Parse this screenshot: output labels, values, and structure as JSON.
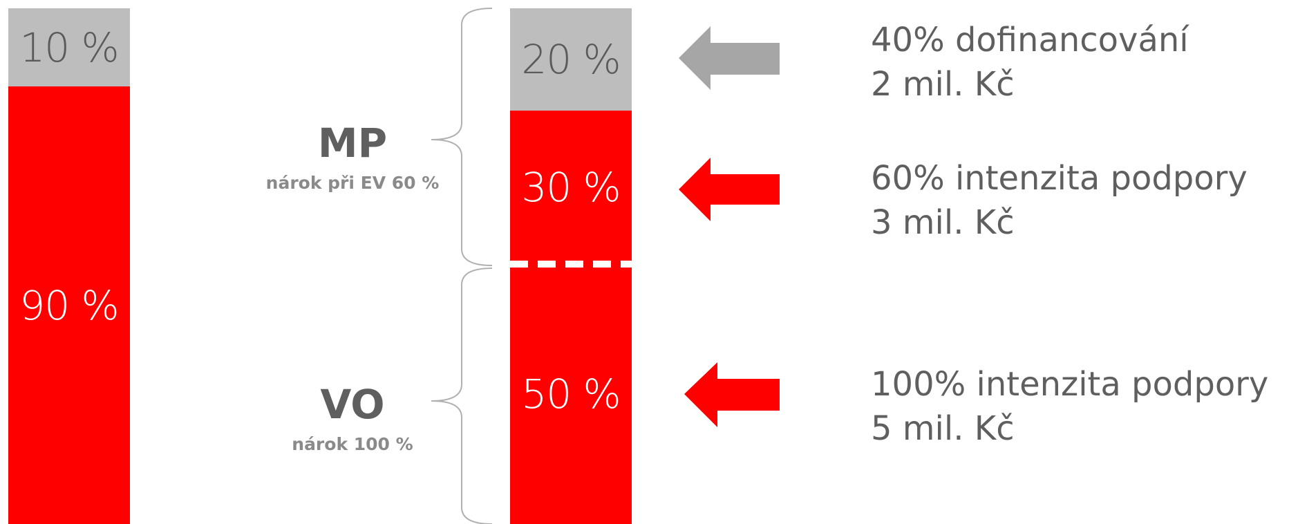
{
  "left_bar": {
    "top_segment": {
      "label": "10 %",
      "value": 10,
      "color": "#bdbdbd"
    },
    "bottom_segment": {
      "label": "90 %",
      "value": 90,
      "color": "#ff0000"
    }
  },
  "right_bar": {
    "segments": [
      {
        "label": "20 %",
        "value": 20,
        "color": "#bdbdbd"
      },
      {
        "label": "30 %",
        "value": 30,
        "color": "#ff0000"
      },
      {
        "label": "50 %",
        "value": 50,
        "color": "#ff0000"
      }
    ]
  },
  "brackets": {
    "mp": {
      "title": "MP",
      "subtitle": "nárok při EV 60 %"
    },
    "vo": {
      "title": "VO",
      "subtitle": "nárok 100 %"
    }
  },
  "descriptions": [
    {
      "line1": "40% dofinancování",
      "line2": "2 mil. Kč",
      "arrow_color": "#a6a6a6"
    },
    {
      "line1": "60% intenzita podpory",
      "line2": "3 mil. Kč",
      "arrow_color": "#ff0000"
    },
    {
      "line1": "100% intenzita podpory",
      "line2": "5 mil. Kč",
      "arrow_color": "#ff0000"
    }
  ],
  "colors": {
    "grey_segment": "#bdbdbd",
    "red_segment": "#ff0000",
    "text_dark": "#5f5f5f",
    "text_light": "#8a8a8a",
    "bracket": "#b0b0b0"
  }
}
